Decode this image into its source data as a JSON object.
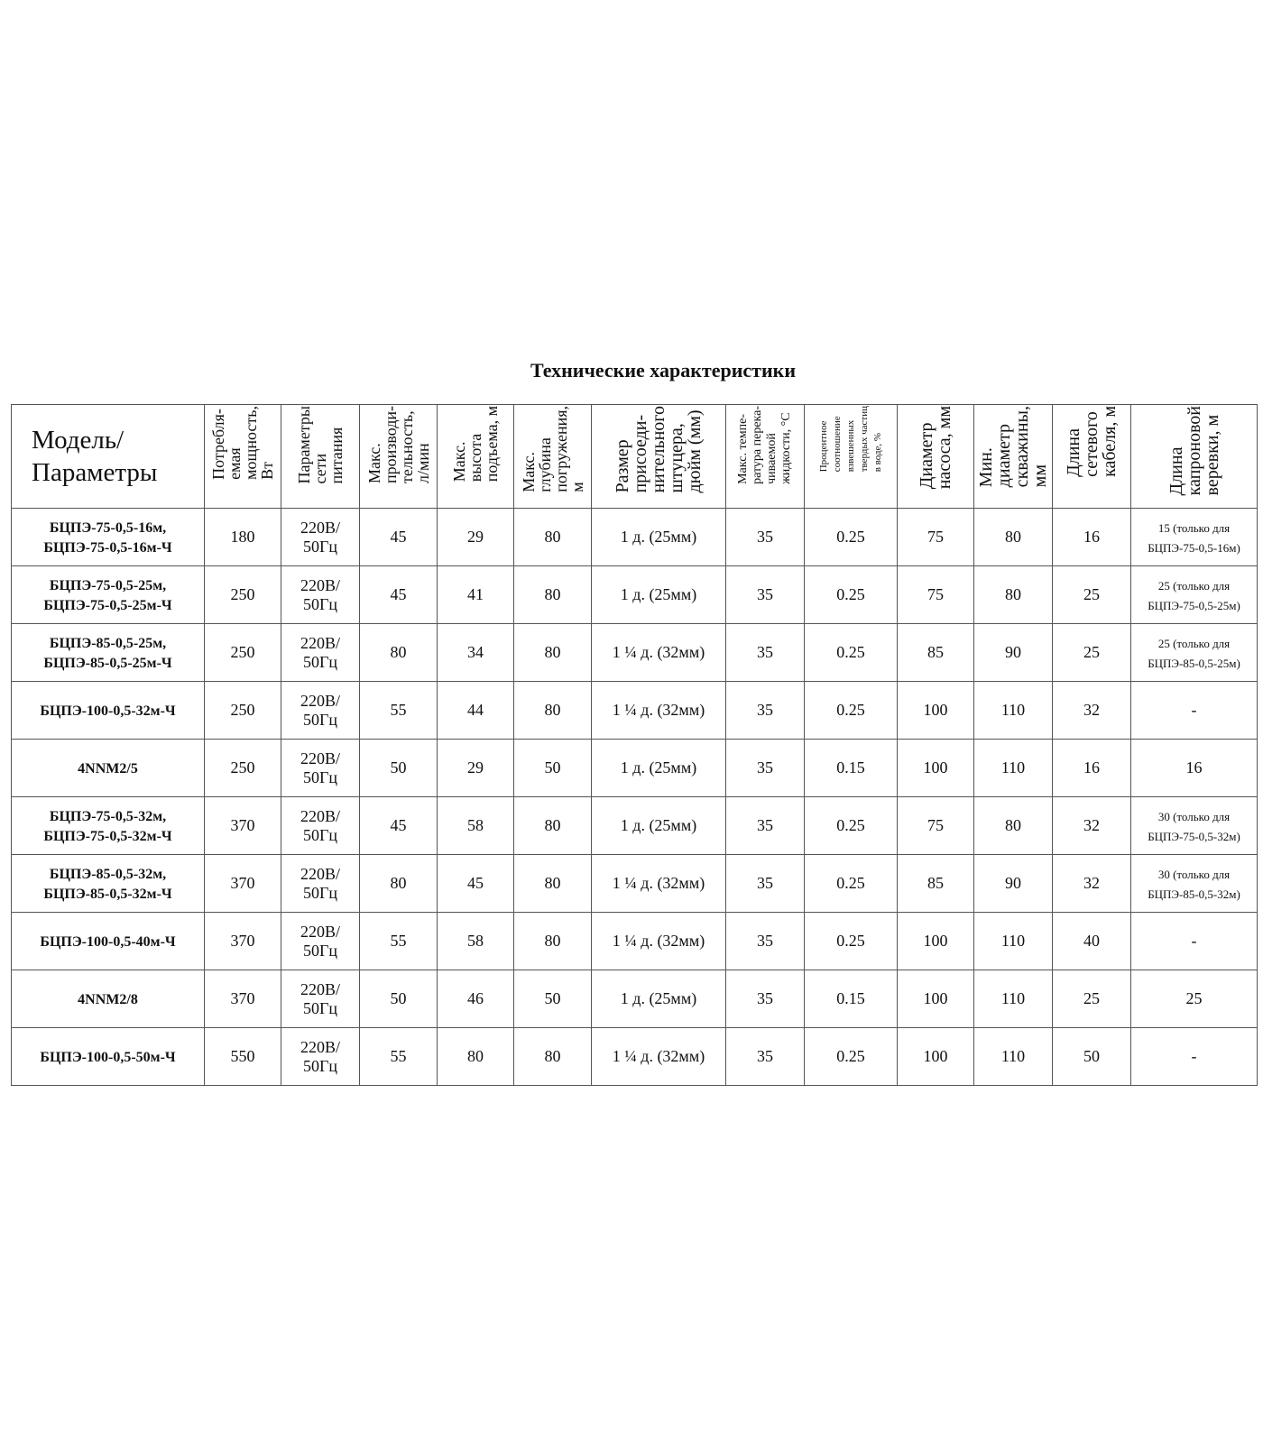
{
  "title": "Технические характеристики",
  "headers": [
    "Модель/\nПараметры",
    "Потребля-\nемая\nмощность,\nВт",
    "Параметры\nсети\nпитания",
    "Макс.\nпроизводи-\nтельность,\nл/мин",
    "Макс.\nвысота\nподъема, м",
    "Макс.\nглубина\nпогружения,\nм",
    "Размер\nприсоеди-\nнительного\nштуцера,\nдюйм (мм)",
    "Макс. темпе-\nратура перека-\nчиваемой\nжидкости, °С",
    "Процентное\nсоотношение\nвзвешенных\nтвердых частиц\nв воде, %",
    "Диаметр\nнасоса, мм",
    "Мин.\nдиаметр\nскважины,\nмм",
    "Длина\nсетевого\nкабеля, м",
    "Длина\nкапроновой\nверевки, м"
  ],
  "rows": [
    [
      "БЦПЭ-75-0,5-16м,\nБЦПЭ-75-0,5-16м-Ч",
      "180",
      "220В/\n50Гц",
      "45",
      "29",
      "80",
      "1 д. (25мм)",
      "35",
      "0.25",
      "75",
      "80",
      "16",
      "15 (только для\nБЦПЭ-75-0,5-16м)"
    ],
    [
      "БЦПЭ-75-0,5-25м,\nБЦПЭ-75-0,5-25м-Ч",
      "250",
      "220В/\n50Гц",
      "45",
      "41",
      "80",
      "1 д. (25мм)",
      "35",
      "0.25",
      "75",
      "80",
      "25",
      "25 (только для\nБЦПЭ-75-0,5-25м)"
    ],
    [
      "БЦПЭ-85-0,5-25м,\nБЦПЭ-85-0,5-25м-Ч",
      "250",
      "220В/\n50Гц",
      "80",
      "34",
      "80",
      "1 ¼ д. (32мм)",
      "35",
      "0.25",
      "85",
      "90",
      "25",
      "25 (только для\nБЦПЭ-85-0,5-25м)"
    ],
    [
      "БЦПЭ-100-0,5-32м-Ч",
      "250",
      "220В/\n50Гц",
      "55",
      "44",
      "80",
      "1 ¼ д. (32мм)",
      "35",
      "0.25",
      "100",
      "110",
      "32",
      "-"
    ],
    [
      "4NNM2/5",
      "250",
      "220В/\n50Гц",
      "50",
      "29",
      "50",
      "1 д. (25мм)",
      "35",
      "0.15",
      "100",
      "110",
      "16",
      "16"
    ],
    [
      "БЦПЭ-75-0,5-32м,\nБЦПЭ-75-0,5-32м-Ч",
      "370",
      "220В/\n50Гц",
      "45",
      "58",
      "80",
      "1 д. (25мм)",
      "35",
      "0.25",
      "75",
      "80",
      "32",
      "30 (только для\nБЦПЭ-75-0,5-32м)"
    ],
    [
      "БЦПЭ-85-0,5-32м,\nБЦПЭ-85-0,5-32м-Ч",
      "370",
      "220В/\n50Гц",
      "80",
      "45",
      "80",
      "1 ¼ д. (32мм)",
      "35",
      "0.25",
      "85",
      "90",
      "32",
      "30 (только для\nБЦПЭ-85-0,5-32м)"
    ],
    [
      "БЦПЭ-100-0,5-40м-Ч",
      "370",
      "220В/\n50Гц",
      "55",
      "58",
      "80",
      "1 ¼ д. (32мм)",
      "35",
      "0.25",
      "100",
      "110",
      "40",
      "-"
    ],
    [
      "4NNM2/8",
      "370",
      "220В/\n50Гц",
      "50",
      "46",
      "50",
      "1 д. (25мм)",
      "35",
      "0.15",
      "100",
      "110",
      "25",
      "25"
    ],
    [
      "БЦПЭ-100-0,5-50м-Ч",
      "550",
      "220В/\n50Гц",
      "55",
      "80",
      "80",
      "1 ¼ д. (32мм)",
      "35",
      "0.25",
      "100",
      "110",
      "50",
      "-"
    ]
  ]
}
